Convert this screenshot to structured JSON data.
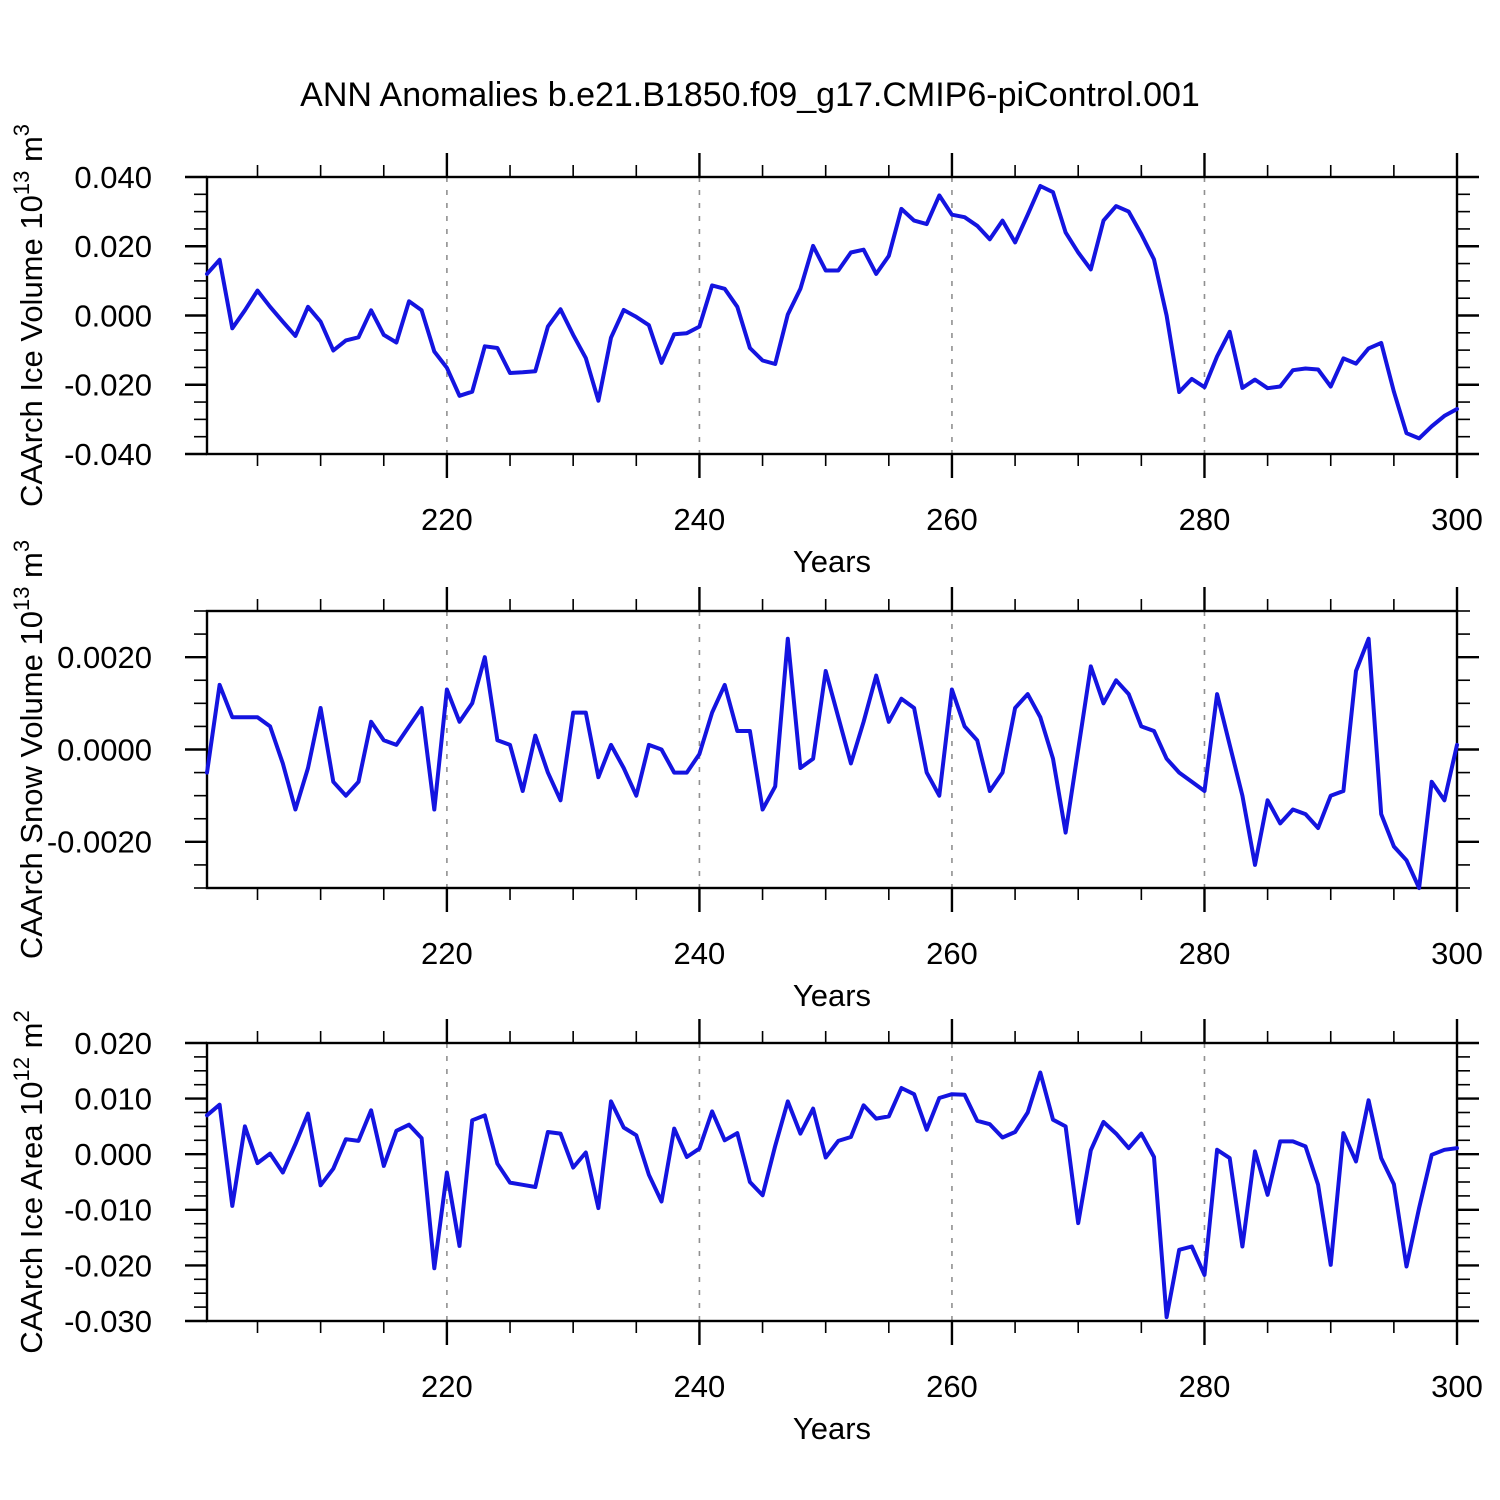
{
  "page": {
    "title": "ANN Anomalies b.e21.B1850.f09_g17.CMIP6-piControl.001"
  },
  "style": {
    "line_color": "#1414e0",
    "frame_color": "#000000",
    "grid_color": "#909090",
    "tick_color": "#000000",
    "background": "#ffffff"
  },
  "chart_data": [
    {
      "type": "line",
      "panel": "ice-volume",
      "ylabel_parts": [
        {
          "t": "CAArch Ice Volume 10"
        },
        {
          "s": "13"
        },
        {
          "t": " m"
        },
        {
          "s": "3"
        }
      ],
      "xlabel": "Years",
      "x_start": 201,
      "x_step": 1,
      "xlim": [
        201,
        300
      ],
      "ylim": [
        -0.04,
        0.04
      ],
      "ytick_major_step": 0.02,
      "ytick_minor_step": 0.005,
      "ytick_decimals": 3,
      "xticks_major": [
        220,
        240,
        260,
        280,
        300
      ],
      "xtick_minor_step": 5,
      "grid_x": [
        220,
        240,
        260,
        280
      ],
      "grid_style": "vertical-dashed",
      "legend": "none",
      "values": [
        0.012,
        0.0161,
        -0.0037,
        0.0015,
        0.0072,
        0.0025,
        -0.0018,
        -0.0059,
        0.0025,
        -0.0018,
        -0.0101,
        -0.0072,
        -0.0063,
        0.0015,
        -0.0056,
        -0.0078,
        0.0041,
        0.0015,
        -0.0104,
        -0.0151,
        -0.0232,
        -0.022,
        -0.0089,
        -0.0094,
        -0.0166,
        -0.0164,
        -0.0161,
        -0.0032,
        0.0018,
        -0.0056,
        -0.0123,
        -0.0246,
        -0.0064,
        0.0016,
        -0.0004,
        -0.0028,
        -0.0137,
        -0.0054,
        -0.0051,
        -0.0032,
        0.0087,
        0.0077,
        0.0025,
        -0.0094,
        -0.013,
        -0.014,
        0.0003,
        0.0077,
        0.0201,
        0.013,
        0.013,
        0.0182,
        0.019,
        0.012,
        0.0172,
        0.0308,
        0.0274,
        0.0264,
        0.0347,
        0.0291,
        0.0284,
        0.0259,
        0.022,
        0.0274,
        0.0211,
        0.0291,
        0.0374,
        0.0356,
        0.024,
        0.0182,
        0.0133,
        0.0274,
        0.0316,
        0.03,
        0.0235,
        0.0162,
        0.0,
        -0.0221,
        -0.0183,
        -0.0207,
        -0.0118,
        -0.0047,
        -0.0209,
        -0.0185,
        -0.021,
        -0.0205,
        -0.0158,
        -0.0153,
        -0.0156,
        -0.0205,
        -0.0124,
        -0.0139,
        -0.0095,
        -0.0079,
        -0.022,
        -0.034,
        -0.0355,
        -0.032,
        -0.029,
        -0.027
      ]
    },
    {
      "type": "line",
      "panel": "snow-volume",
      "ylabel_parts": [
        {
          "t": "CAArch Snow Volume 10"
        },
        {
          "s": "13"
        },
        {
          "t": " m"
        },
        {
          "s": "3"
        }
      ],
      "xlabel": "Years",
      "x_start": 201,
      "x_step": 1,
      "xlim": [
        201,
        300
      ],
      "ylim": [
        -0.003,
        0.003
      ],
      "ytick_major_step": 0.002,
      "ytick_minor_step": 0.0005,
      "ytick_decimals": 4,
      "xticks_major": [
        220,
        240,
        260,
        280,
        300
      ],
      "xtick_minor_step": 5,
      "grid_x": [
        220,
        240,
        260,
        280
      ],
      "grid_style": "vertical-dashed",
      "legend": "none",
      "values": [
        -0.0005,
        0.0014,
        0.0007,
        0.0007,
        0.0007,
        0.0005,
        -0.0003,
        -0.0013,
        -0.0004,
        0.0009,
        -0.0007,
        -0.001,
        -0.0007,
        0.0006,
        0.0002,
        0.0001,
        0.0005,
        0.0009,
        -0.0013,
        0.0013,
        0.0006,
        0.001,
        0.002,
        0.0002,
        0.0001,
        -0.0009,
        0.0003,
        -0.0005,
        -0.0011,
        0.0008,
        0.0008,
        -0.0006,
        0.0001,
        -0.0004,
        -0.001,
        0.0001,
        0.0,
        -0.0005,
        -0.0005,
        -0.0001,
        0.0008,
        0.0014,
        0.0004,
        0.0004,
        -0.0013,
        -0.0008,
        0.0024,
        -0.0004,
        -0.0002,
        0.0017,
        0.0007,
        -0.0003,
        0.0006,
        0.0016,
        0.0006,
        0.0011,
        0.0009,
        -0.0005,
        -0.001,
        0.0013,
        0.0005,
        0.0002,
        -0.0009,
        -0.0005,
        0.0009,
        0.0012,
        0.0007,
        -0.0002,
        -0.0018,
        0.0,
        0.0018,
        0.001,
        0.0015,
        0.0012,
        0.0005,
        0.0004,
        -0.0002,
        -0.0005,
        -0.0007,
        -0.0009,
        0.0012,
        0.0001,
        -0.001,
        -0.0025,
        -0.0011,
        -0.0016,
        -0.0013,
        -0.0014,
        -0.0017,
        -0.001,
        -0.0009,
        0.0017,
        0.0024,
        -0.0014,
        -0.0021,
        -0.0024,
        -0.003,
        -0.0007,
        -0.0011,
        0.0001
      ]
    },
    {
      "type": "line",
      "panel": "ice-area",
      "ylabel_parts": [
        {
          "t": "CAArch Ice Area 10"
        },
        {
          "s": "12"
        },
        {
          "t": " m"
        },
        {
          "s": "2"
        }
      ],
      "xlabel": "Years",
      "x_start": 201,
      "x_step": 1,
      "xlim": [
        201,
        300
      ],
      "ylim": [
        -0.03,
        0.02
      ],
      "ytick_major_step": 0.01,
      "ytick_minor_step": 0.0025,
      "ytick_decimals": 3,
      "xticks_major": [
        220,
        240,
        260,
        280,
        300
      ],
      "xtick_minor_step": 5,
      "grid_x": [
        220,
        240,
        260,
        280
      ],
      "grid_style": "vertical-dashed",
      "legend": "none",
      "values": [
        0.007,
        0.0089,
        -0.0093,
        0.005,
        -0.0016,
        0.0001,
        -0.0033,
        0.0018,
        0.0073,
        -0.0056,
        -0.0026,
        0.0027,
        0.0024,
        0.0079,
        -0.0021,
        0.0042,
        0.0053,
        0.0029,
        -0.0205,
        -0.0033,
        -0.0165,
        0.0061,
        0.007,
        -0.0017,
        -0.0051,
        -0.0055,
        -0.0059,
        0.004,
        0.0037,
        -0.0024,
        0.0003,
        -0.0097,
        0.0095,
        0.0048,
        0.0034,
        -0.0037,
        -0.0085,
        0.0046,
        -0.0005,
        0.001,
        0.0077,
        0.0025,
        0.0038,
        -0.005,
        -0.0074,
        0.0015,
        0.0095,
        0.0037,
        0.0082,
        -0.0006,
        0.0024,
        0.0031,
        0.0088,
        0.0064,
        0.0068,
        0.0119,
        0.0108,
        0.0044,
        0.0101,
        0.0108,
        0.0107,
        0.006,
        0.0054,
        0.003,
        0.004,
        0.0075,
        0.0147,
        0.0062,
        0.005,
        -0.0124,
        0.0007,
        0.0058,
        0.0037,
        0.0011,
        0.0037,
        -0.0005,
        -0.0293,
        -0.0172,
        -0.0166,
        -0.0217,
        0.0008,
        -0.0007,
        -0.0166,
        0.0005,
        -0.0073,
        0.0023,
        0.0023,
        0.0014,
        -0.0055,
        -0.0199,
        0.0038,
        -0.0013,
        0.0097,
        -0.0007,
        -0.0054,
        -0.0202,
        -0.0097,
        -0.0001,
        0.0008,
        0.0011
      ]
    }
  ]
}
